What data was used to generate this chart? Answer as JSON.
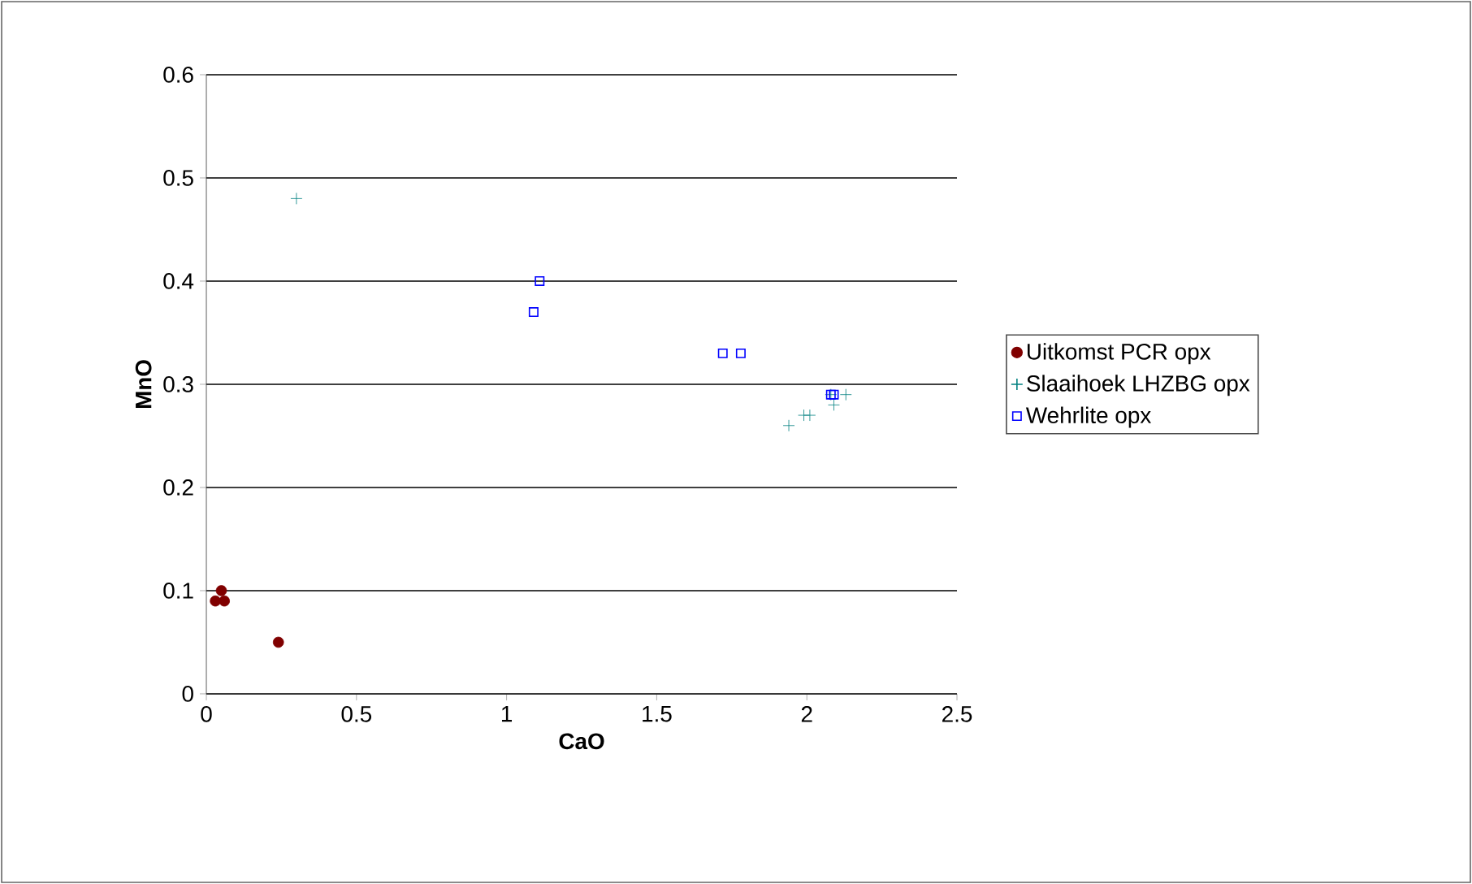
{
  "chart_data": {
    "type": "scatter",
    "xlabel": "CaO",
    "ylabel": "MnO",
    "xlim": [
      0,
      2.5
    ],
    "xticks": [
      0,
      0.5,
      1,
      1.5,
      2,
      2.5
    ],
    "ylim": [
      0,
      0.6
    ],
    "yticks": [
      0,
      0.1,
      0.2,
      0.3,
      0.4,
      0.5,
      0.6
    ],
    "grid": "y",
    "legend": "right",
    "series": [
      {
        "name": "Uitkomst PCR opx",
        "color": "#800000",
        "marker": "circle",
        "x": [
          0.03,
          0.05,
          0.06,
          0.24
        ],
        "values": [
          0.09,
          0.1,
          0.09,
          0.05
        ]
      },
      {
        "name": "Slaaihoek LHZBG opx",
        "color": "#008080",
        "marker": "cross",
        "x": [
          0.3,
          1.94,
          1.99,
          2.01,
          2.09,
          2.13,
          2.08
        ],
        "values": [
          0.48,
          0.26,
          0.27,
          0.27,
          0.28,
          0.29,
          0.29
        ]
      },
      {
        "name": "Wehrlite opx",
        "color": "#0000ff",
        "marker": "square",
        "x": [
          1.09,
          1.11,
          1.72,
          1.78,
          2.08,
          2.09
        ],
        "values": [
          0.37,
          0.4,
          0.33,
          0.33,
          0.29,
          0.29
        ]
      }
    ]
  }
}
